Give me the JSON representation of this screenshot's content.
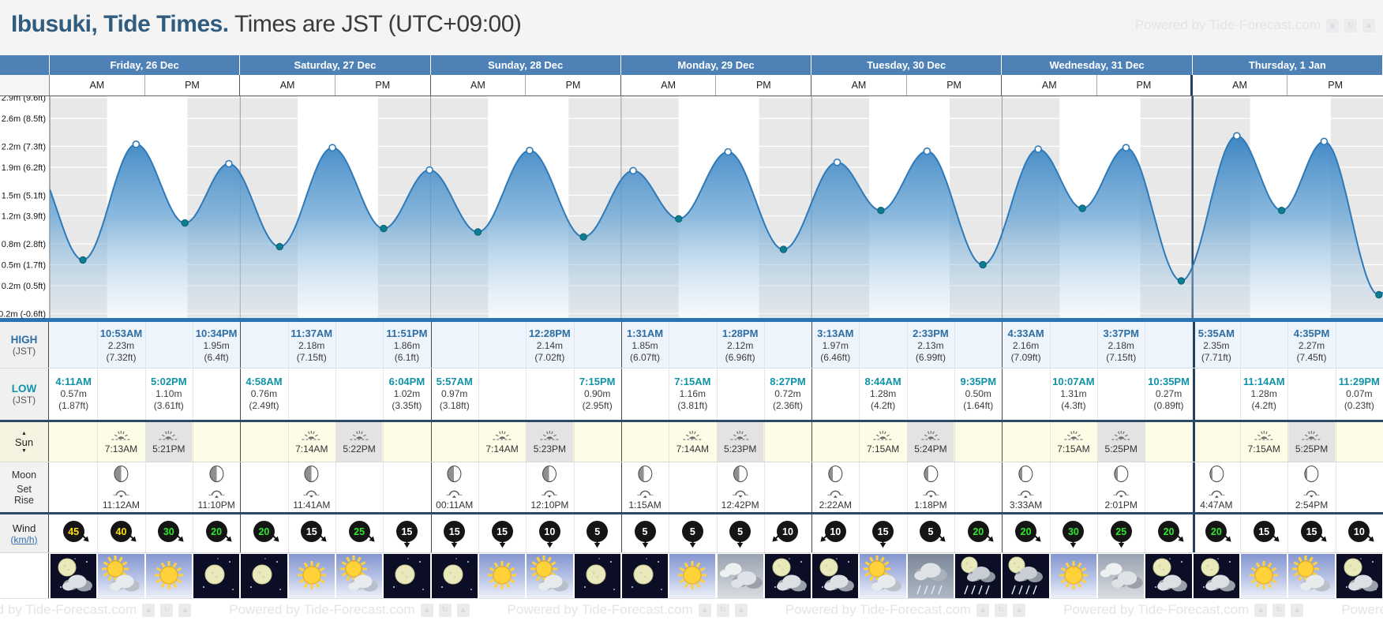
{
  "header": {
    "location": "Ibusuki, Tide Times.",
    "subtitle": " Times are JST (UTC+09:00)",
    "powered": "Powered by Tide-Forecast.com"
  },
  "ampm": [
    "AM",
    "PM"
  ],
  "rows": {
    "high": {
      "l1": "HIGH",
      "l2": "(JST)"
    },
    "low": {
      "l1": "LOW",
      "l2": "(JST)"
    },
    "sun": {
      "l1": "Sun",
      "up": "▲",
      "down": "▼"
    },
    "moon": {
      "l1": "Moon",
      "l2": "Set",
      "l3": "Rise"
    },
    "wind": {
      "l1": "Wind",
      "l2": "(km/h)"
    }
  },
  "axis": {
    "labels": [
      {
        "m": "2.9m",
        "ft": "(9.6ft)",
        "h": 2.9
      },
      {
        "m": "2.6m",
        "ft": "(8.5ft)",
        "h": 2.6
      },
      {
        "m": "2.2m",
        "ft": "(7.3ft)",
        "h": 2.2
      },
      {
        "m": "1.9m",
        "ft": "(6.2ft)",
        "h": 1.9
      },
      {
        "m": "1.5m",
        "ft": "(5.1ft)",
        "h": 1.5
      },
      {
        "m": "1.2m",
        "ft": "(3.9ft)",
        "h": 1.2
      },
      {
        "m": "0.8m",
        "ft": "(2.8ft)",
        "h": 0.8
      },
      {
        "m": "0.5m",
        "ft": "(1.7ft)",
        "h": 0.5
      },
      {
        "m": "0.2m",
        "ft": "(0.5ft)",
        "h": 0.2
      },
      {
        "m": "-0.2m",
        "ft": "(-0.6ft)",
        "h": -0.2
      }
    ]
  },
  "colors": {
    "headerBlue": "#4e81b5",
    "curveLine": "#2e7ab9",
    "lowDot": "#0c7d92",
    "highTime": "#2d6da3",
    "lowTime": "#0f93a8",
    "night": "#e8e8e9",
    "windYellow": "#ffe014",
    "windGreen": "#2ee62e",
    "windWhite": "#ffffff"
  },
  "chart_data": {
    "type": "area",
    "title": "Tide height curve over 7 days (heights in metres, all extremes listed in days[].tides)",
    "ylim": [
      -0.2,
      2.9
    ],
    "x_axis": "time across 7 day columns (AM/PM)",
    "note": "gray bands = night time, white = daylight"
  },
  "days": [
    {
      "label": "Friday, 26 Dec",
      "tides": [
        {
          "type": "low",
          "time": "4:11AM",
          "t": 4.18,
          "m": "0.57m",
          "ft": "(1.87ft)",
          "h": 0.57
        },
        {
          "type": "high",
          "time": "10:53AM",
          "t": 10.88,
          "m": "2.23m",
          "ft": "(7.32ft)",
          "h": 2.23
        },
        {
          "type": "low",
          "time": "5:02PM",
          "t": 17.03,
          "m": "1.10m",
          "ft": "(3.61ft)",
          "h": 1.1
        },
        {
          "type": "high",
          "time": "10:34PM",
          "t": 22.57,
          "m": "1.95m",
          "ft": "(6.4ft)",
          "h": 1.95
        }
      ],
      "sunrise": {
        "time": "7:13AM",
        "t": 7.22
      },
      "sunset": {
        "time": "5:21PM",
        "t": 17.35
      },
      "moon": [
        {
          "time": "11:12AM",
          "t": 11.2,
          "dir": "set"
        },
        {
          "time": "11:10PM",
          "t": 23.17,
          "dir": "rise"
        }
      ],
      "phase": 0.5,
      "wind": [
        {
          "v": 45,
          "c": "#ffe014",
          "r": -45
        },
        {
          "v": 40,
          "c": "#ffe014",
          "r": -45
        },
        {
          "v": 30,
          "c": "#2ee62e",
          "r": -45
        },
        {
          "v": 20,
          "c": "#2ee62e",
          "r": -45
        }
      ],
      "weather": [
        "night-cloudy",
        "partly-sunny",
        "sunny",
        "clear-night"
      ]
    },
    {
      "label": "Saturday, 27 Dec",
      "tides": [
        {
          "type": "low",
          "time": "4:58AM",
          "t": 4.97,
          "m": "0.76m",
          "ft": "(2.49ft)",
          "h": 0.76
        },
        {
          "type": "high",
          "time": "11:37AM",
          "t": 11.62,
          "m": "2.18m",
          "ft": "(7.15ft)",
          "h": 2.18
        },
        {
          "type": "low",
          "time": "6:04PM",
          "t": 18.07,
          "m": "1.02m",
          "ft": "(3.35ft)",
          "h": 1.02
        },
        {
          "type": "high",
          "time": "11:51PM",
          "t": 23.85,
          "m": "1.86m",
          "ft": "(6.1ft)",
          "h": 1.86
        }
      ],
      "sunrise": {
        "time": "7:14AM",
        "t": 7.23
      },
      "sunset": {
        "time": "5:22PM",
        "t": 17.37
      },
      "moon": [
        {
          "time": "11:41AM",
          "t": 11.68,
          "dir": "set"
        }
      ],
      "phase": 0.5,
      "wind": [
        {
          "v": 20,
          "c": "#2ee62e",
          "r": -45
        },
        {
          "v": 15,
          "c": "#ffffff",
          "r": -45
        },
        {
          "v": 25,
          "c": "#2ee62e",
          "r": -45
        },
        {
          "v": 15,
          "c": "#ffffff",
          "r": 0
        }
      ],
      "weather": [
        "clear-night",
        "sunny",
        "partly-sunny",
        "clear-night"
      ]
    },
    {
      "label": "Sunday, 28 Dec",
      "tides": [
        {
          "type": "low",
          "time": "5:57AM",
          "t": 5.95,
          "m": "0.97m",
          "ft": "(3.18ft)",
          "h": 0.97
        },
        {
          "type": "high",
          "time": "12:28PM",
          "t": 12.47,
          "m": "2.14m",
          "ft": "(7.02ft)",
          "h": 2.14
        },
        {
          "type": "low",
          "time": "7:15PM",
          "t": 19.25,
          "m": "0.90m",
          "ft": "(2.95ft)",
          "h": 0.9
        }
      ],
      "sunrise": {
        "time": "7:14AM",
        "t": 7.23
      },
      "sunset": {
        "time": "5:23PM",
        "t": 17.38
      },
      "moon": [
        {
          "time": "00:11AM",
          "t": 0.18,
          "dir": "rise"
        },
        {
          "time": "12:10PM",
          "t": 12.17,
          "dir": "set"
        }
      ],
      "phase": 0.48,
      "wind": [
        {
          "v": 15,
          "c": "#ffffff",
          "r": 0
        },
        {
          "v": 15,
          "c": "#ffffff",
          "r": 0
        },
        {
          "v": 10,
          "c": "#ffffff",
          "r": 0
        },
        {
          "v": 5,
          "c": "#ffffff",
          "r": 0
        }
      ],
      "weather": [
        "clear-night",
        "sunny",
        "partly-sunny",
        "clear-night"
      ]
    },
    {
      "label": "Monday, 29 Dec",
      "tides": [
        {
          "type": "high",
          "time": "1:31AM",
          "t": 1.52,
          "m": "1.85m",
          "ft": "(6.07ft)",
          "h": 1.85
        },
        {
          "type": "low",
          "time": "7:15AM",
          "t": 7.25,
          "m": "1.16m",
          "ft": "(3.81ft)",
          "h": 1.16
        },
        {
          "type": "high",
          "time": "1:28PM",
          "t": 13.47,
          "m": "2.12m",
          "ft": "(6.96ft)",
          "h": 2.12
        },
        {
          "type": "low",
          "time": "8:27PM",
          "t": 20.45,
          "m": "0.72m",
          "ft": "(2.36ft)",
          "h": 0.72
        }
      ],
      "sunrise": {
        "time": "7:14AM",
        "t": 7.23
      },
      "sunset": {
        "time": "5:23PM",
        "t": 17.38
      },
      "moon": [
        {
          "time": "1:15AM",
          "t": 1.25,
          "dir": "rise"
        },
        {
          "time": "12:42PM",
          "t": 12.7,
          "dir": "set"
        }
      ],
      "phase": 0.4,
      "wind": [
        {
          "v": 5,
          "c": "#ffffff",
          "r": 0
        },
        {
          "v": 5,
          "c": "#ffffff",
          "r": 0
        },
        {
          "v": 5,
          "c": "#ffffff",
          "r": 0
        },
        {
          "v": 10,
          "c": "#ffffff",
          "r": 45
        }
      ],
      "weather": [
        "clear-night",
        "sunny",
        "overcast",
        "night-cloudy"
      ]
    },
    {
      "label": "Tuesday, 30 Dec",
      "tides": [
        {
          "type": "high",
          "time": "3:13AM",
          "t": 3.22,
          "m": "1.97m",
          "ft": "(6.46ft)",
          "h": 1.97
        },
        {
          "type": "low",
          "time": "8:44AM",
          "t": 8.73,
          "m": "1.28m",
          "ft": "(4.2ft)",
          "h": 1.28
        },
        {
          "type": "high",
          "time": "2:33PM",
          "t": 14.55,
          "m": "2.13m",
          "ft": "(6.99ft)",
          "h": 2.13
        },
        {
          "type": "low",
          "time": "9:35PM",
          "t": 21.58,
          "m": "0.50m",
          "ft": "(1.64ft)",
          "h": 0.5
        }
      ],
      "sunrise": {
        "time": "7:15AM",
        "t": 7.25
      },
      "sunset": {
        "time": "5:24PM",
        "t": 17.4
      },
      "moon": [
        {
          "time": "2:22AM",
          "t": 2.37,
          "dir": "rise"
        },
        {
          "time": "1:18PM",
          "t": 13.3,
          "dir": "set"
        }
      ],
      "phase": 0.3,
      "wind": [
        {
          "v": 10,
          "c": "#ffffff",
          "r": 45
        },
        {
          "v": 15,
          "c": "#ffffff",
          "r": 0
        },
        {
          "v": 5,
          "c": "#ffffff",
          "r": -45
        },
        {
          "v": 20,
          "c": "#2ee62e",
          "r": -45
        }
      ],
      "weather": [
        "night-cloudy",
        "partly-sunny",
        "rain",
        "night-rain"
      ]
    },
    {
      "label": "Wednesday, 31 Dec",
      "tides": [
        {
          "type": "high",
          "time": "4:33AM",
          "t": 4.55,
          "m": "2.16m",
          "ft": "(7.09ft)",
          "h": 2.16
        },
        {
          "type": "low",
          "time": "10:07AM",
          "t": 10.12,
          "m": "1.31m",
          "ft": "(4.3ft)",
          "h": 1.31
        },
        {
          "type": "high",
          "time": "3:37PM",
          "t": 15.62,
          "m": "2.18m",
          "ft": "(7.15ft)",
          "h": 2.18
        },
        {
          "type": "low",
          "time": "10:35PM",
          "t": 22.58,
          "m": "0.27m",
          "ft": "(0.89ft)",
          "h": 0.27
        }
      ],
      "sunrise": {
        "time": "7:15AM",
        "t": 7.25
      },
      "sunset": {
        "time": "5:25PM",
        "t": 17.42
      },
      "moon": [
        {
          "time": "3:33AM",
          "t": 3.55,
          "dir": "rise"
        },
        {
          "time": "2:01PM",
          "t": 14.02,
          "dir": "set"
        }
      ],
      "phase": 0.24,
      "wind": [
        {
          "v": 20,
          "c": "#2ee62e",
          "r": -45
        },
        {
          "v": 30,
          "c": "#2ee62e",
          "r": 0
        },
        {
          "v": 25,
          "c": "#2ee62e",
          "r": 0
        },
        {
          "v": 20,
          "c": "#2ee62e",
          "r": -45
        }
      ],
      "weather": [
        "night-rain",
        "sunny",
        "overcast",
        "night-cloudy"
      ]
    },
    {
      "label": "Thursday, 1 Jan",
      "tides": [
        {
          "type": "high",
          "time": "5:35AM",
          "t": 5.58,
          "m": "2.35m",
          "ft": "(7.71ft)",
          "h": 2.35
        },
        {
          "type": "low",
          "time": "11:14AM",
          "t": 11.23,
          "m": "1.28m",
          "ft": "(4.2ft)",
          "h": 1.28
        },
        {
          "type": "high",
          "time": "4:35PM",
          "t": 16.58,
          "m": "2.27m",
          "ft": "(7.45ft)",
          "h": 2.27
        },
        {
          "type": "low",
          "time": "11:29PM",
          "t": 23.48,
          "m": "0.07m",
          "ft": "(0.23ft)",
          "h": 0.07
        }
      ],
      "sunrise": {
        "time": "7:15AM",
        "t": 7.25
      },
      "sunset": {
        "time": "5:25PM",
        "t": 17.42
      },
      "moon": [
        {
          "time": "4:47AM",
          "t": 4.78,
          "dir": "rise"
        },
        {
          "time": "2:54PM",
          "t": 14.9,
          "dir": "set"
        }
      ],
      "phase": 0.16,
      "wind": [
        {
          "v": 20,
          "c": "#2ee62e",
          "r": -45
        },
        {
          "v": 15,
          "c": "#ffffff",
          "r": -45
        },
        {
          "v": 15,
          "c": "#ffffff",
          "r": -45
        },
        {
          "v": 10,
          "c": "#ffffff",
          "r": -45
        }
      ],
      "weather": [
        "night-cloudy",
        "sunny",
        "partly-sunny",
        "night-cloudy"
      ]
    }
  ]
}
